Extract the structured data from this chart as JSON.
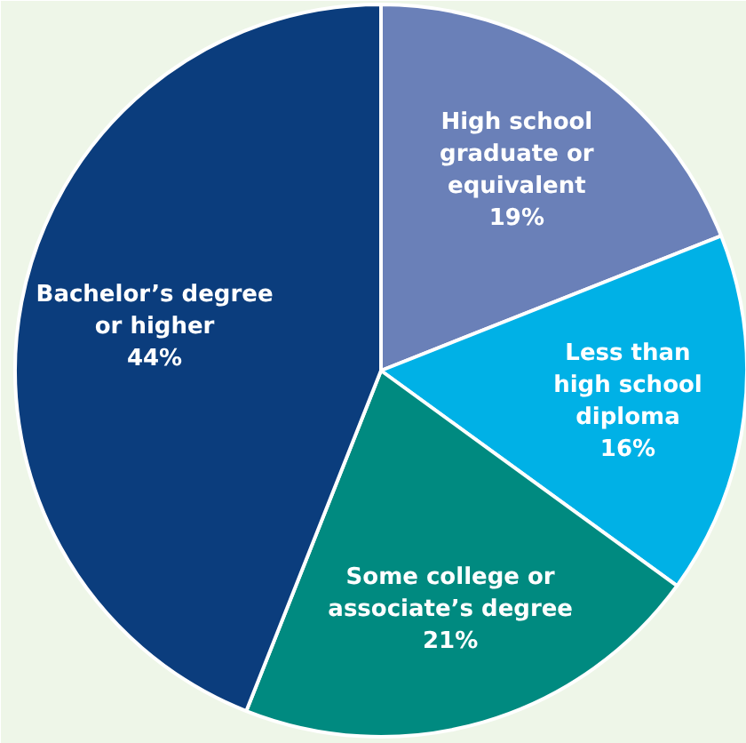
{
  "chart_data": {
    "type": "pie",
    "categories": [
      "High school graduate or equivalent",
      "Less than high school diploma",
      "Some college or associate’s degree",
      "Bachelor’s degree or higher"
    ],
    "values": [
      19,
      16,
      21,
      44
    ],
    "value_labels": [
      "19%",
      "16%",
      "21%",
      "44%"
    ],
    "colors": [
      "#6a80b8",
      "#00b1e6",
      "#008a80",
      "#0b3d7d"
    ]
  }
}
